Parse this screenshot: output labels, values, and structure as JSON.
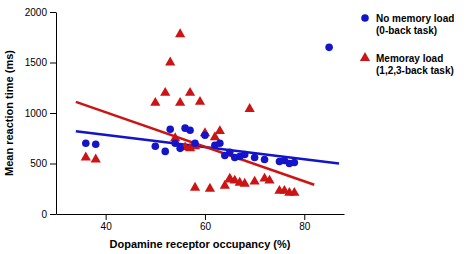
{
  "chart_data": {
    "type": "scatter",
    "xlabel": "Dopamine receptor occupancy (%)",
    "ylabel": "Mean reaction time (ms)",
    "xlim": [
      30,
      88
    ],
    "ylim": [
      0,
      2000
    ],
    "xticks": [
      40,
      60,
      80
    ],
    "yticks": [
      0,
      500,
      1000,
      1500,
      2000
    ],
    "grid": false,
    "legend": "right",
    "series": [
      {
        "name": "No memory load\n(0-back task)",
        "type": "scatter",
        "marker": "circle",
        "color": "#1414c8",
        "x": [
          36,
          38,
          50,
          52,
          53,
          54,
          55,
          56,
          57,
          58,
          60,
          62,
          63,
          64,
          65,
          66,
          67,
          68,
          70,
          72,
          75,
          76,
          77,
          78,
          85
        ],
        "values": [
          700,
          690,
          670,
          620,
          840,
          700,
          650,
          850,
          830,
          700,
          780,
          680,
          700,
          580,
          610,
          560,
          570,
          590,
          560,
          540,
          520,
          530,
          500,
          510,
          1650
        ]
      },
      {
        "name": "Memoray load\n(1,2,3-back task)",
        "type": "scatter",
        "marker": "triangle",
        "color": "#cc1414",
        "x": [
          36,
          38,
          50,
          52,
          53,
          54,
          55,
          55,
          56,
          57,
          57,
          58,
          58,
          59,
          60,
          61,
          62,
          63,
          64,
          65,
          65,
          66,
          67,
          68,
          69,
          70,
          72,
          73,
          75,
          76,
          77,
          78
        ],
        "values": [
          560,
          540,
          1100,
          1200,
          1500,
          750,
          1100,
          1780,
          660,
          650,
          1200,
          670,
          260,
          1110,
          800,
          250,
          760,
          820,
          280,
          340,
          350,
          330,
          310,
          300,
          1040,
          320,
          350,
          330,
          230,
          230,
          210,
          210
        ]
      },
      {
        "type": "line",
        "color": "#1414c8",
        "x": [
          34,
          87
        ],
        "values": [
          820,
          500
        ]
      },
      {
        "type": "line",
        "color": "#cc1414",
        "x": [
          34,
          82
        ],
        "values": [
          1110,
          290
        ]
      }
    ]
  }
}
